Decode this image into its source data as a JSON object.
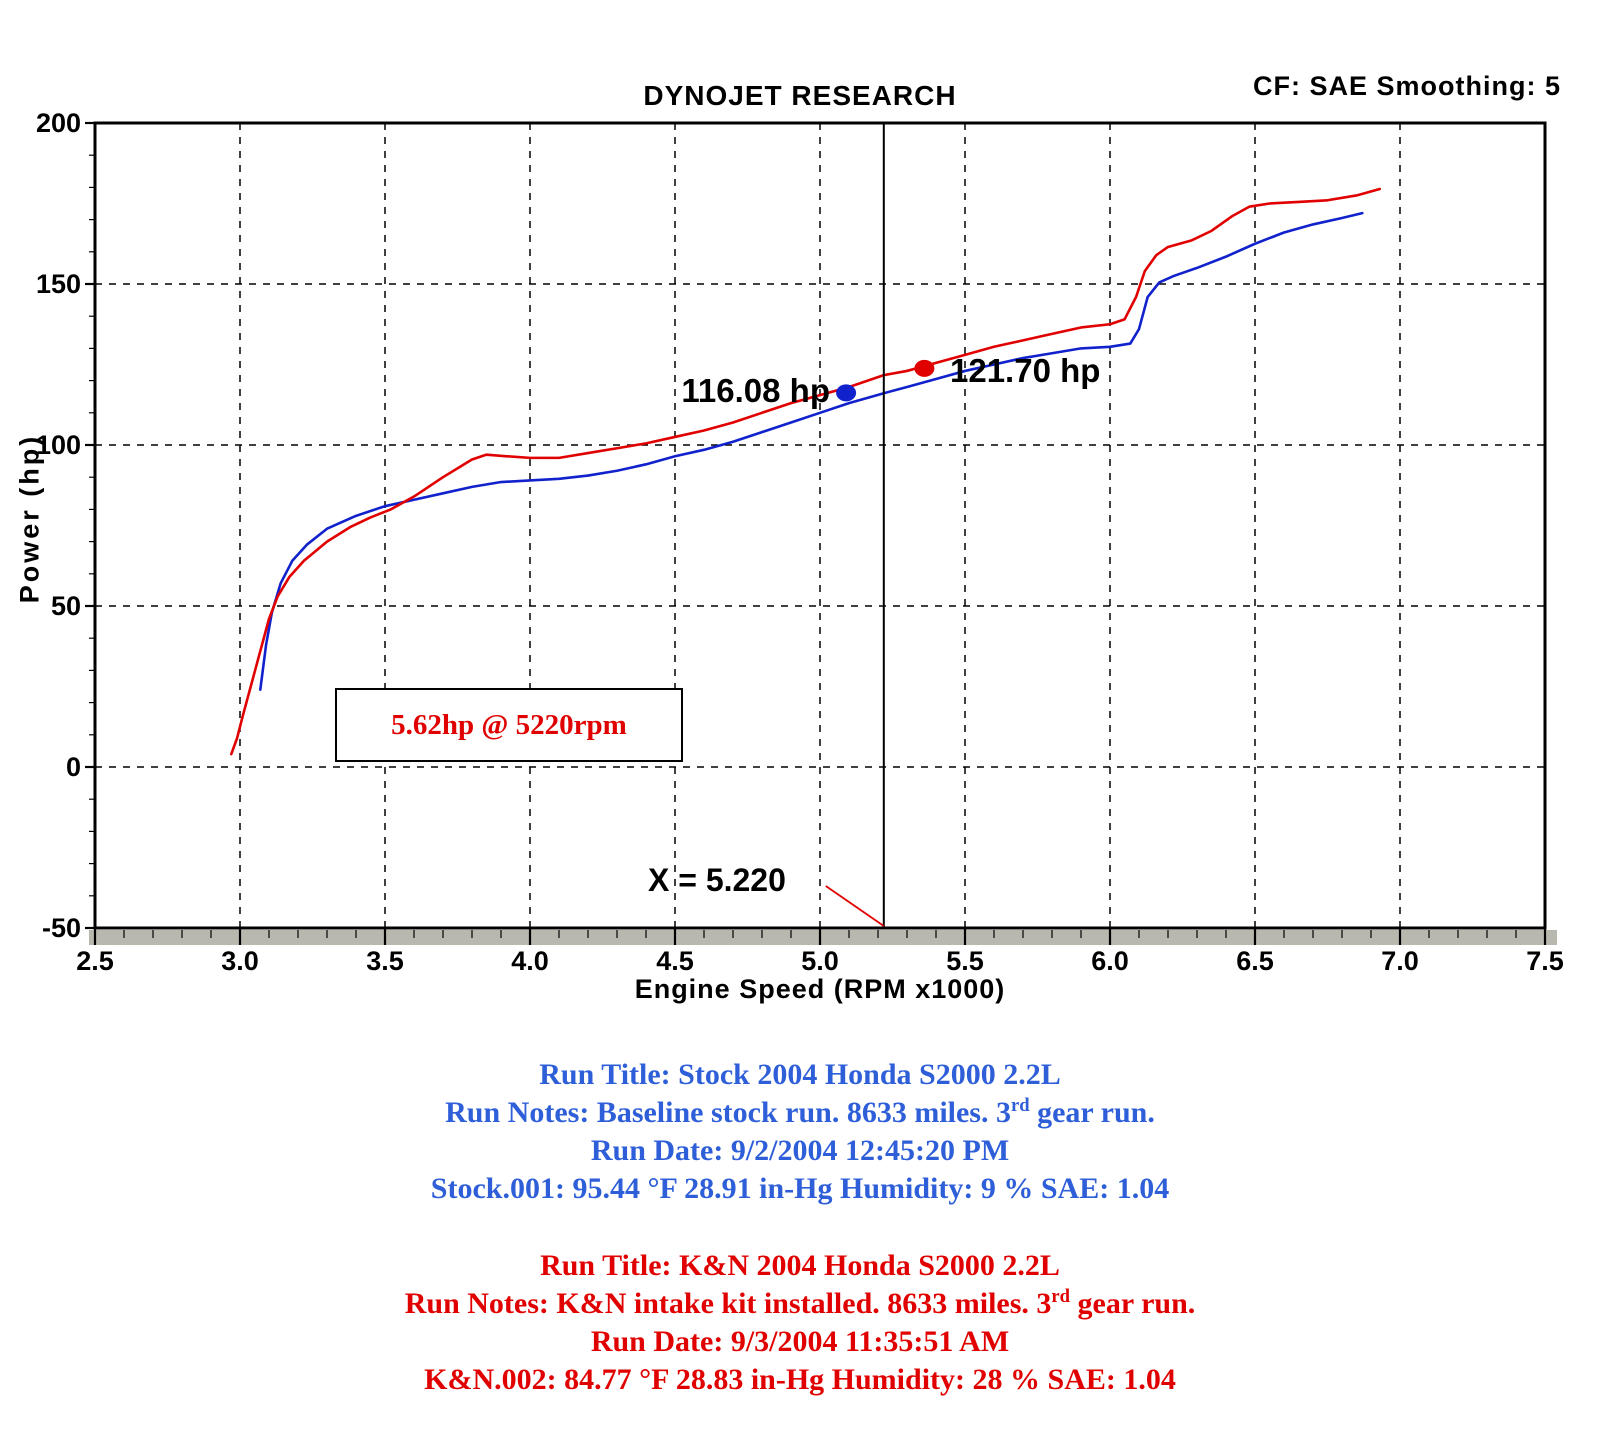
{
  "header": {
    "title": "DYNOJET RESEARCH",
    "corner": "CF: SAE  Smoothing: 5"
  },
  "chart_data": {
    "type": "line",
    "title": "DYNOJET RESEARCH",
    "xlabel": "Engine Speed (RPM x1000)",
    "ylabel": "Power (hp)",
    "xlim": [
      2.5,
      7.5
    ],
    "ylim": [
      -50,
      200
    ],
    "x_tick_labels": [
      "2.5",
      "3.0",
      "3.5",
      "4.0",
      "4.5",
      "5.0",
      "5.5",
      "6.0",
      "6.5",
      "7.0",
      "7.5"
    ],
    "y_tick_labels": [
      "200",
      "150",
      "100",
      "50",
      "0",
      "-50"
    ],
    "grid": "dashed",
    "legend": "none",
    "cursor_x": 5.22,
    "cursor_label": "X = 5.220",
    "series": [
      {
        "name": "Stock.001 (Stock 2004 Honda S2000 2.2L)",
        "color": "#1122cc",
        "x": [
          3.07,
          3.09,
          3.11,
          3.14,
          3.18,
          3.23,
          3.3,
          3.4,
          3.5,
          3.6,
          3.7,
          3.8,
          3.9,
          4.0,
          4.1,
          4.2,
          4.3,
          4.4,
          4.5,
          4.6,
          4.7,
          4.8,
          4.9,
          5.0,
          5.1,
          5.22,
          5.3,
          5.4,
          5.5,
          5.6,
          5.7,
          5.8,
          5.9,
          6.0,
          6.07,
          6.1,
          6.13,
          6.17,
          6.22,
          6.3,
          6.4,
          6.5,
          6.6,
          6.7,
          6.8,
          6.87
        ],
        "y": [
          24,
          38,
          48,
          57,
          64,
          69,
          74,
          78,
          81,
          83,
          85,
          87,
          88.5,
          89,
          89.5,
          90.5,
          92,
          94,
          96.5,
          98.5,
          101,
          104,
          107,
          110,
          113,
          116.08,
          118,
          120.5,
          123,
          125,
          127,
          128.5,
          130,
          130.5,
          131.5,
          136,
          146,
          150.5,
          152.5,
          155,
          158.5,
          162.5,
          166,
          168.5,
          170.5,
          172
        ]
      },
      {
        "name": "K&N.002 (K&N 2004 Honda S2000 2.2L)",
        "color": "#e10000",
        "x": [
          2.97,
          2.99,
          3.01,
          3.04,
          3.07,
          3.1,
          3.13,
          3.17,
          3.22,
          3.3,
          3.38,
          3.45,
          3.52,
          3.6,
          3.7,
          3.8,
          3.85,
          3.92,
          4.0,
          4.1,
          4.2,
          4.3,
          4.4,
          4.5,
          4.6,
          4.7,
          4.8,
          4.9,
          5.0,
          5.1,
          5.22,
          5.3,
          5.4,
          5.5,
          5.6,
          5.7,
          5.8,
          5.9,
          6.0,
          6.05,
          6.09,
          6.12,
          6.16,
          6.2,
          6.28,
          6.35,
          6.42,
          6.48,
          6.55,
          6.65,
          6.75,
          6.85,
          6.93
        ],
        "y": [
          4,
          9,
          16,
          26,
          36,
          46,
          53,
          59,
          64,
          70,
          74.5,
          77.5,
          80,
          84,
          90,
          95.5,
          97,
          96.5,
          96,
          96,
          97.5,
          99,
          100.5,
          102.5,
          104.5,
          107,
          110,
          113,
          115.5,
          118,
          121.7,
          123,
          125.5,
          128,
          130.5,
          132.5,
          134.5,
          136.5,
          137.5,
          139,
          146,
          154,
          159,
          161.5,
          163.5,
          166.5,
          171,
          174,
          175,
          175.5,
          176,
          177.5,
          179.5
        ]
      }
    ],
    "markers": [
      {
        "label": "116.08 hp",
        "x": 5.09,
        "y": 116.2,
        "color": "#1122cc"
      },
      {
        "label": "121.70 hp",
        "x": 5.36,
        "y": 123.8,
        "color": "#e10000"
      }
    ]
  },
  "annotations": {
    "callout": {
      "text": "5.62hp @ 5220rpm",
      "color": "#e10000"
    }
  },
  "runs": [
    {
      "color": "#2e5fd8",
      "title": "Run Title: Stock 2004 Honda S2000 2.2L",
      "notes_pre": "Run Notes: Baseline stock run. 8633 miles. 3",
      "notes_sup": "rd",
      "notes_post": " gear run.",
      "date": "Run Date: 9/2/2004 12:45:20 PM",
      "conditions": "Stock.001: 95.44 °F 28.91 in-Hg Humidity: 9 % SAE: 1.04"
    },
    {
      "color": "#e10000",
      "title": "Run Title: K&N 2004 Honda S2000 2.2L",
      "notes_pre": "Run Notes: K&N intake kit installed. 8633 miles. 3",
      "notes_sup": "rd",
      "notes_post": " gear run.",
      "date": "Run Date: 9/3/2004 11:35:51 AM",
      "conditions": "K&N.002: 84.77 °F 28.83 in-Hg Humidity: 28 % SAE: 1.04"
    }
  ]
}
